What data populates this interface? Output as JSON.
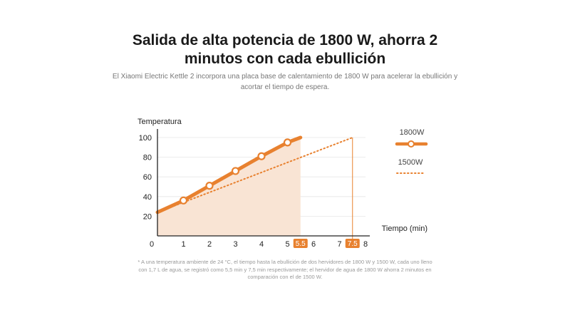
{
  "header": {
    "title_line1": "Salida de alta potencia de 1800 W, ahorra 2",
    "title_line2": "minutos con cada ebullición",
    "subtitle_line1": "El Xiaomi Electric Kettle 2 incorpora una placa base de calentamiento de 1800 W para acelerar la ebullición y",
    "subtitle_line2": "acortar el tiempo de espera."
  },
  "footnote": {
    "line1": "* A una temperatura ambiente de 24 °C, el tiempo hasta la ebullición de dos hervidores de 1800 W y 1500 W, cada uno lleno",
    "line2": "con 1,7 L de agua, se registró como 5,5 min y 7,5 min respectivamente; el hervidor de agua de 1800 W ahorra 2 minutos en",
    "line3": "comparación con el de 1500 W."
  },
  "colors": {
    "accent": "#E8812F",
    "fill": "#F9E4D4",
    "grid": "#E6E6E6",
    "axis": "#222222"
  },
  "chart_data": {
    "type": "line",
    "ylabel": "Temperatura",
    "xlabel": "Tiempo (min)",
    "xlim": [
      0,
      8
    ],
    "ylim": [
      0,
      100
    ],
    "x_ticks": [
      "0",
      "1",
      "2",
      "3",
      "4",
      "5",
      "6",
      "7",
      "8"
    ],
    "y_ticks": [
      "20",
      "40",
      "60",
      "80",
      "100"
    ],
    "highlight_ticks": [
      {
        "x": 5.5,
        "label": "5.5"
      },
      {
        "x": 7.5,
        "label": "7.5"
      }
    ],
    "series": [
      {
        "name": "1800W",
        "style": "solid-with-markers",
        "x": [
          0,
          1,
          2,
          3,
          4,
          5,
          5.5
        ],
        "y": [
          24,
          36,
          51,
          66,
          81,
          95,
          100
        ],
        "markers_x": [
          1,
          2,
          3,
          4,
          5
        ]
      },
      {
        "name": "1500W",
        "style": "dotted",
        "x": [
          0,
          7.5
        ],
        "y": [
          24,
          100
        ]
      }
    ]
  }
}
